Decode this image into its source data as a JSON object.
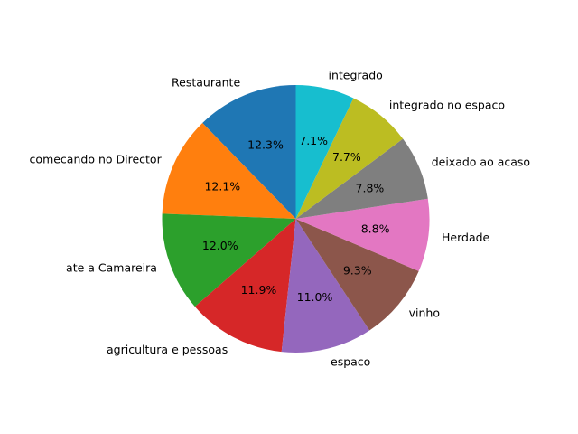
{
  "chart_data": {
    "type": "pie",
    "title": "",
    "start_angle_deg": 90,
    "direction": "counterclockwise",
    "slices": [
      {
        "label": "Restaurante",
        "value": 12.3,
        "pct_label": "12.3%",
        "color": "#1f77b4"
      },
      {
        "label": "comecando no Director",
        "value": 12.1,
        "pct_label": "12.1%",
        "color": "#ff7f0e"
      },
      {
        "label": "ate a Camareira",
        "value": 12.0,
        "pct_label": "12.0%",
        "color": "#2ca02c"
      },
      {
        "label": "agricultura e pessoas",
        "value": 11.9,
        "pct_label": "11.9%",
        "color": "#d62728"
      },
      {
        "label": "espaco",
        "value": 11.0,
        "pct_label": "11.0%",
        "color": "#9467bd"
      },
      {
        "label": "vinho",
        "value": 9.3,
        "pct_label": "9.3%",
        "color": "#8c564b"
      },
      {
        "label": "Herdade",
        "value": 8.8,
        "pct_label": "8.8%",
        "color": "#e377c2"
      },
      {
        "label": "deixado ao acaso",
        "value": 7.8,
        "pct_label": "7.8%",
        "color": "#7f7f7f"
      },
      {
        "label": "integrado no espaco",
        "value": 7.7,
        "pct_label": "7.7%",
        "color": "#bcbd22"
      },
      {
        "label": "integrado",
        "value": 7.1,
        "pct_label": "7.1%",
        "color": "#17becf"
      }
    ]
  }
}
